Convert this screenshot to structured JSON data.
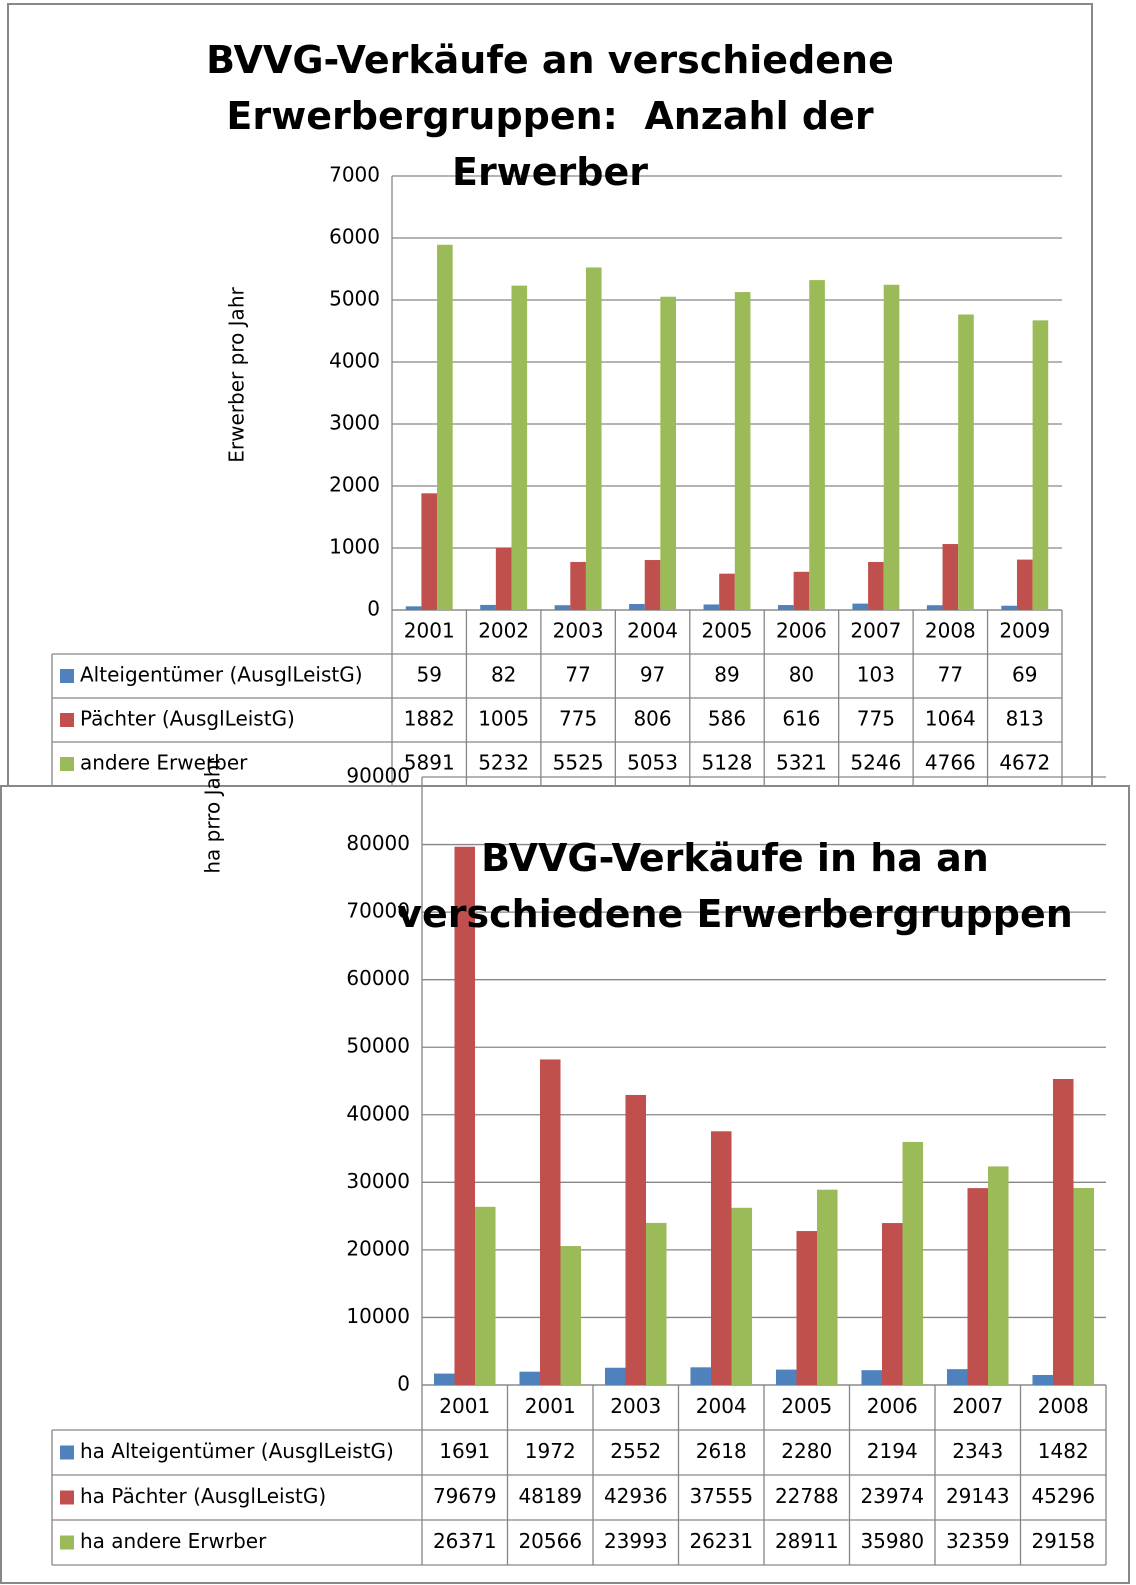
{
  "chart_data": [
    {
      "type": "bar",
      "title": "BVVG-Verkäufe an verschiedene Erwerbergruppen:  Anzahl der Erwerber",
      "y_label": "Erwerber pro Jahr",
      "categories": [
        "2001",
        "2002",
        "2003",
        "2004",
        "2005",
        "2006",
        "2007",
        "2008",
        "2009"
      ],
      "series": [
        {
          "name": "Alteigentümer (AusglLeistG)",
          "color": "#4f81bd",
          "values": [
            59,
            82,
            77,
            97,
            89,
            80,
            103,
            77,
            69
          ]
        },
        {
          "name": "Pächter (AusglLeistG)",
          "color": "#c0504d",
          "values": [
            1882,
            1005,
            775,
            806,
            586,
            616,
            775,
            1064,
            813
          ]
        },
        {
          "name": "andere Erwerber",
          "color": "#9bbb59",
          "values": [
            5891,
            5232,
            5525,
            5053,
            5128,
            5321,
            5246,
            4766,
            4672
          ]
        }
      ],
      "ylim": [
        0,
        7000
      ],
      "yticks": [
        0,
        1000,
        2000,
        3000,
        4000,
        5000,
        6000,
        7000
      ],
      "grid": true
    },
    {
      "type": "bar",
      "title": "BVVG-Verkäufe in ha an verschiedene Erwerbergruppen",
      "y_label": "ha  prro Jahr",
      "categories": [
        "2001",
        "2001",
        "2003",
        "2004",
        "2005",
        "2006",
        "2007",
        "2008"
      ],
      "series": [
        {
          "name": "ha Alteigentümer (AusglLeistG)",
          "color": "#4f81bd",
          "values": [
            1691,
            1972,
            2552,
            2618,
            2280,
            2194,
            2343,
            1482
          ]
        },
        {
          "name": "ha Pächter (AusglLeistG)",
          "color": "#c0504d",
          "values": [
            79679,
            48189,
            42936,
            37555,
            22788,
            23974,
            29143,
            45296
          ]
        },
        {
          "name": "ha andere Erwrber",
          "color": "#9bbb59",
          "values": [
            26371,
            20566,
            23993,
            26231,
            28911,
            35980,
            32359,
            29158
          ]
        }
      ],
      "ylim": [
        0,
        90000
      ],
      "yticks": [
        0,
        10000,
        20000,
        30000,
        40000,
        50000,
        60000,
        70000,
        80000,
        90000
      ],
      "grid": true
    }
  ]
}
